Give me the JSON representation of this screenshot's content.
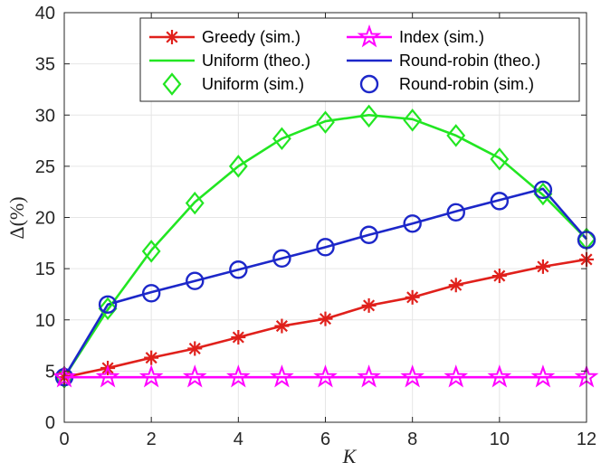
{
  "chart_data": {
    "type": "line",
    "title": "",
    "xlabel": "K",
    "ylabel": "Δ(%)",
    "xlim": [
      0,
      12
    ],
    "ylim": [
      0,
      40
    ],
    "xticks": [
      0,
      2,
      4,
      6,
      8,
      10,
      12
    ],
    "yticks": [
      0,
      5,
      10,
      15,
      20,
      25,
      30,
      35,
      40
    ],
    "grid": true,
    "legend_position": "top",
    "series": [
      {
        "name": "Greedy (sim.)",
        "kind": "line-marker",
        "marker": "asterisk",
        "color": "#e0201b",
        "x": [
          0,
          1,
          2,
          3,
          4,
          5,
          6,
          7,
          8,
          9,
          10,
          11,
          12
        ],
        "y": [
          4.4,
          5.3,
          6.3,
          7.2,
          8.3,
          9.4,
          10.1,
          11.4,
          12.2,
          13.4,
          14.3,
          15.2,
          15.9
        ]
      },
      {
        "name": "Index (sim.)",
        "kind": "line-marker",
        "marker": "pentagram",
        "color": "#ff00ff",
        "x": [
          0,
          1,
          2,
          3,
          4,
          5,
          6,
          7,
          8,
          9,
          10,
          11,
          12
        ],
        "y": [
          4.4,
          4.4,
          4.4,
          4.4,
          4.4,
          4.4,
          4.4,
          4.4,
          4.4,
          4.4,
          4.4,
          4.4,
          4.4
        ]
      },
      {
        "name": "Uniform (theo.)",
        "kind": "line",
        "color": "#22e622",
        "x": [
          0,
          1,
          2,
          3,
          4,
          5,
          6,
          7,
          8,
          9,
          10,
          11,
          12
        ],
        "y": [
          4.4,
          11.0,
          16.8,
          21.5,
          25.0,
          27.7,
          29.4,
          30.0,
          29.6,
          28.0,
          25.8,
          22.2,
          17.9
        ]
      },
      {
        "name": "Round-robin (theo.)",
        "kind": "line",
        "color": "#1c27c9",
        "x": [
          0,
          1,
          2,
          3,
          4,
          5,
          6,
          7,
          8,
          9,
          10,
          11,
          12
        ],
        "y": [
          4.4,
          11.5,
          12.7,
          13.8,
          14.9,
          16.0,
          17.1,
          18.3,
          19.4,
          20.6,
          21.7,
          22.8,
          17.9
        ]
      },
      {
        "name": "Uniform (sim.)",
        "kind": "marker",
        "marker": "diamond",
        "color": "#22e622",
        "x": [
          0,
          1,
          2,
          3,
          4,
          5,
          6,
          7,
          8,
          9,
          10,
          11,
          12
        ],
        "y": [
          4.4,
          11.1,
          16.7,
          21.4,
          25.0,
          27.7,
          29.3,
          29.9,
          29.5,
          28.0,
          25.7,
          22.3,
          17.9
        ]
      },
      {
        "name": "Round-robin (sim.)",
        "kind": "marker",
        "marker": "circle",
        "color": "#1c27c9",
        "x": [
          0,
          1,
          2,
          3,
          4,
          5,
          6,
          7,
          8,
          9,
          10,
          11,
          12
        ],
        "y": [
          4.4,
          11.5,
          12.6,
          13.8,
          14.9,
          16.0,
          17.1,
          18.3,
          19.4,
          20.5,
          21.6,
          22.7,
          17.8
        ]
      }
    ]
  }
}
